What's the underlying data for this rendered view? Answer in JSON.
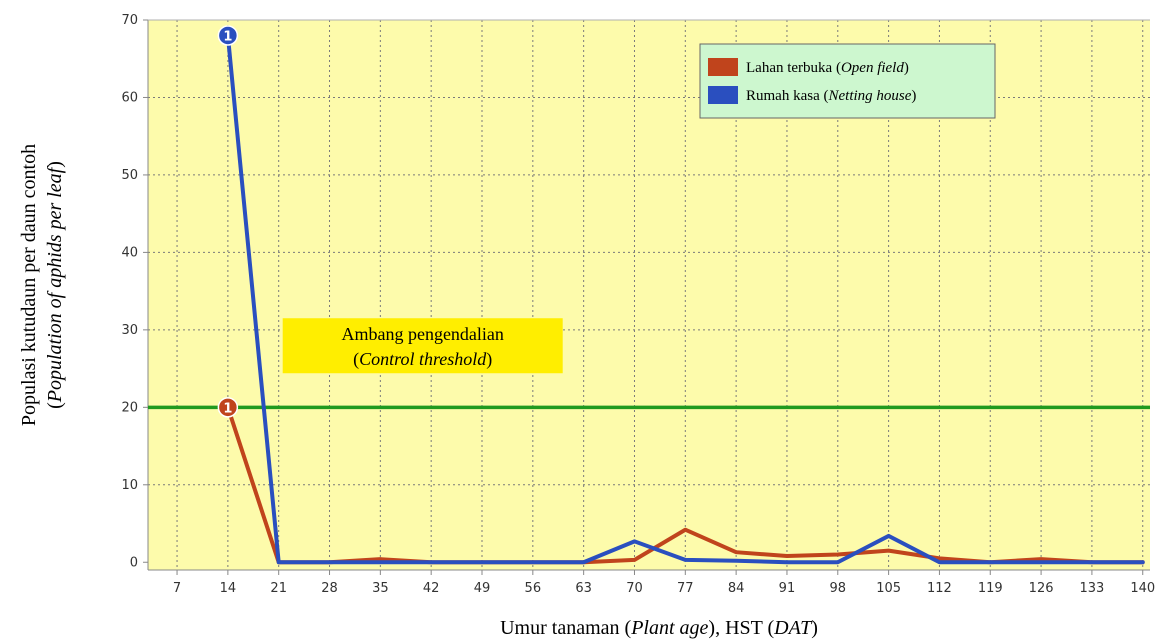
{
  "chart_data": {
    "type": "line",
    "xlabel_parts": [
      "Umur tanaman (",
      "Plant age",
      "),  HST (",
      "DAT",
      ")"
    ],
    "ylabel_line1": "Populasi kutudaun per daun contoh",
    "ylabel_line2_parts": [
      "(",
      "Population of aphids per leaf",
      ")"
    ],
    "x_ticks": [
      7,
      14,
      21,
      28,
      35,
      42,
      49,
      56,
      63,
      70,
      77,
      84,
      91,
      98,
      105,
      112,
      119,
      126,
      133,
      140
    ],
    "xlim": [
      3,
      141
    ],
    "y_ticks": [
      0,
      10,
      20,
      30,
      40,
      50,
      60,
      70
    ],
    "ylim": [
      -1,
      70
    ],
    "grid": true,
    "legend_position": "top-right",
    "series": [
      {
        "name_parts": [
          "Lahan terbuka (",
          "Open field",
          ")"
        ],
        "color": "#c0441c",
        "x": [
          14,
          21,
          28,
          35,
          42,
          49,
          56,
          63,
          70,
          77,
          84,
          91,
          98,
          105,
          112,
          119,
          126,
          133,
          140
        ],
        "y": [
          20,
          0,
          0,
          0.4,
          0,
          0,
          0,
          0,
          0.3,
          4.2,
          1.3,
          0.8,
          1.0,
          1.5,
          0.5,
          0,
          0.4,
          0,
          0
        ]
      },
      {
        "name_parts": [
          "Rumah kasa (",
          "Netting house",
          ")"
        ],
        "color": "#2a4fbf",
        "x": [
          14,
          21,
          28,
          35,
          42,
          49,
          56,
          63,
          70,
          77,
          84,
          91,
          98,
          105,
          112,
          119,
          126,
          133,
          140
        ],
        "y": [
          68,
          0,
          0,
          0,
          0,
          0,
          0,
          0,
          2.7,
          0.3,
          0.2,
          0,
          0,
          3.4,
          0,
          0,
          0,
          0,
          0
        ]
      }
    ],
    "point_markers": [
      {
        "series": 1,
        "x": 14,
        "y": 68,
        "label": "1"
      },
      {
        "series": 0,
        "x": 14,
        "y": 20,
        "label": "1"
      }
    ],
    "threshold": {
      "y": 20,
      "color": "#1f9a1f",
      "label_line1": "Ambang pengendalian",
      "label_line2_parts": [
        "(",
        "Control threshold",
        ")"
      ],
      "label_bg": "#ffee00"
    },
    "plot_bg": "#fdfbab",
    "legend_bg": "#cdf7cf"
  }
}
